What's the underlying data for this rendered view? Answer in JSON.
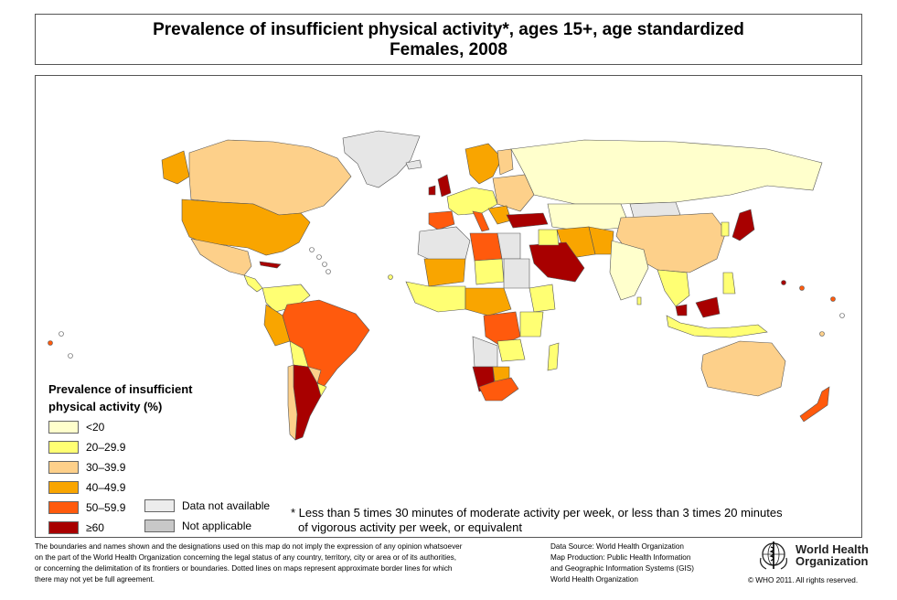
{
  "title": {
    "line1": "Prevalence of insufficient physical activity*, ages 15+, age standardized",
    "line2": "Females, 2008"
  },
  "legend": {
    "title_line1": "Prevalence of insufficient",
    "title_line2": "physical activity (%)",
    "classes": [
      {
        "label": "<20",
        "color": "#ffffcc"
      },
      {
        "label": "20–29.9",
        "color": "#ffff73"
      },
      {
        "label": "30–39.9",
        "color": "#fdd08a"
      },
      {
        "label": "40–49.9",
        "color": "#f9a500"
      },
      {
        "label": "50–59.9",
        "color": "#ff5a0d"
      },
      {
        "label": "≥60",
        "color": "#a80000"
      }
    ],
    "no_data": {
      "label": "Data not available",
      "color": "#ececec"
    },
    "not_applicable": {
      "label": "Not applicable",
      "color": "#c8c8c8"
    }
  },
  "footnote": {
    "line1": "* Less than 5 times 30 minutes of moderate activity per week, or less than 3 times 20 minutes",
    "line2": "of vigorous activity per week, or equivalent"
  },
  "disclaimer": [
    "The boundaries and names shown and the designations used on this map do not imply the expression of any opinion whatsoever",
    "on the part of the World Health Organization concerning the legal status of any country, territory, city or area or of its authorities,",
    "or concerning the delimitation of its frontiers or boundaries.  Dotted lines on maps represent approximate border lines for which",
    "there may not yet be full agreement."
  ],
  "data_source": [
    "Data Source: World Health Organization",
    "Map Production: Public Health Information",
    "and Geographic Information Systems (GIS)",
    "World Health Organization"
  ],
  "logo": {
    "line1": "World Health",
    "line2": "Organization"
  },
  "copyright": "© WHO 2011. All rights reserved."
}
